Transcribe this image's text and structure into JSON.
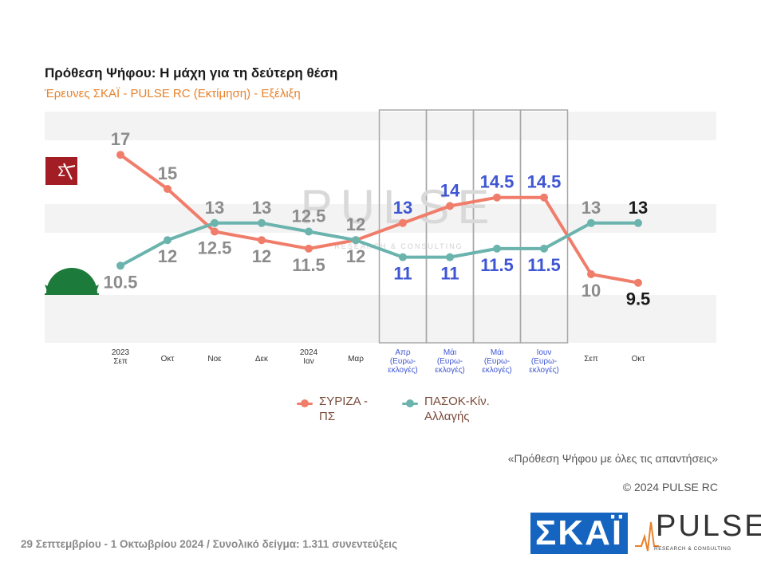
{
  "title": "Πρόθεση Ψήφου: Η μάχη για τη δεύτερη θέση",
  "subtitle": "Έρευνες ΣΚΑΪ - PULSE RC   (Εκτίμηση) - Εξέλιξη",
  "chart_data": {
    "type": "line",
    "categories": [
      [
        "2023",
        "Σεπ"
      ],
      [
        "Οκτ"
      ],
      [
        "Νοε"
      ],
      [
        "Δεκ"
      ],
      [
        "2024",
        "Ιαν"
      ],
      [
        "Μαρ"
      ],
      [
        "Απρ",
        "(Ευρω-",
        "εκλογές)"
      ],
      [
        "Μάι",
        "(Ευρω-",
        "εκλογές)"
      ],
      [
        "Μάι",
        "(Ευρω-",
        "εκλογές)"
      ],
      [
        "Ιουν",
        "(Ευρω-",
        "εκλογές)"
      ],
      [
        "Σεπ"
      ],
      [
        "Οκτ"
      ]
    ],
    "highlighted_categories": [
      6,
      7,
      8,
      9
    ],
    "series": [
      {
        "name": "ΣΥΡΙΖΑ - ΠΣ",
        "color": "#f07d6a",
        "values": [
          17,
          15,
          12.5,
          12,
          11.5,
          12,
          13,
          14,
          14.5,
          14.5,
          10,
          9.5
        ]
      },
      {
        "name": "ΠΑΣΟΚ-Κίν. Αλλαγής",
        "color": "#6bb3ad",
        "values": [
          10.5,
          12,
          13,
          13,
          12.5,
          12,
          11,
          11,
          11.5,
          11.5,
          13,
          13
        ]
      }
    ],
    "grid": "horizontal bands",
    "legend_position": "bottom"
  },
  "legend": [
    {
      "label": "ΣΥΡΙΖΑ - ΠΣ",
      "color": "#f07d6a"
    },
    {
      "label": "ΠΑΣΟΚ-Κίν. Αλλαγής",
      "color": "#6bb3ad"
    }
  ],
  "note": "«Πρόθεση Ψήφου με όλες τις απαντήσεις»",
  "copyright": "© 2024 PULSE RC",
  "footer": "29 Σεπτεμβρίου - 1 Οκτωβρίου 2024  /  Συνολικό δείγμα:  1.311 συνεντεύξεις",
  "logos": {
    "skai": "ΣΚΑΪ",
    "pulse": "PULSE",
    "pulse_sub": "RESEARCH & CONSULTING",
    "watermark": "PULSE",
    "watermark_sub": "RESEARCH & CONSULTING"
  },
  "icons": [
    "syriza-logo-icon",
    "pasok-sun-icon"
  ],
  "colors": {
    "accent": "#e8812a",
    "label_gray": "#8c8c8c",
    "label_blue": "#3f56d4",
    "label_last": "#1a1a1a"
  }
}
